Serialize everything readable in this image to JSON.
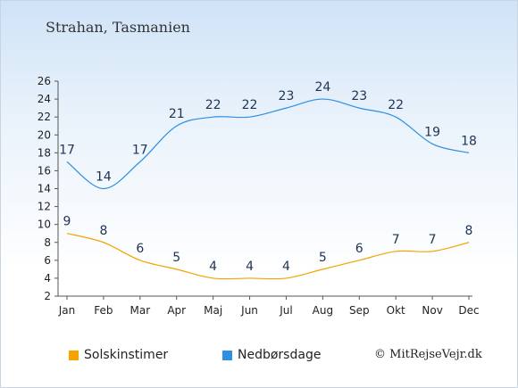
{
  "title": "Strahan, Tasmanien",
  "credit": "© MitRejseVejr.dk",
  "chart_data": {
    "type": "line",
    "categories": [
      "Jan",
      "Feb",
      "Mar",
      "Apr",
      "Maj",
      "Jun",
      "Jul",
      "Aug",
      "Sep",
      "Okt",
      "Nov",
      "Dec"
    ],
    "ylim": [
      2,
      26
    ],
    "yticks": [
      2,
      4,
      6,
      8,
      10,
      12,
      14,
      16,
      18,
      20,
      22,
      24,
      26
    ],
    "grid": false,
    "legend_position": "bottom",
    "series": [
      {
        "name": "Solskinstimer",
        "color": "#f5a300",
        "values": [
          9,
          8,
          6,
          5,
          4,
          4,
          4,
          5,
          6,
          7,
          7,
          8
        ]
      },
      {
        "name": "Nedbørsdage",
        "color": "#2f8fe0",
        "values": [
          17,
          14,
          17,
          21,
          22,
          22,
          23,
          24,
          23,
          22,
          19,
          18
        ]
      }
    ]
  }
}
